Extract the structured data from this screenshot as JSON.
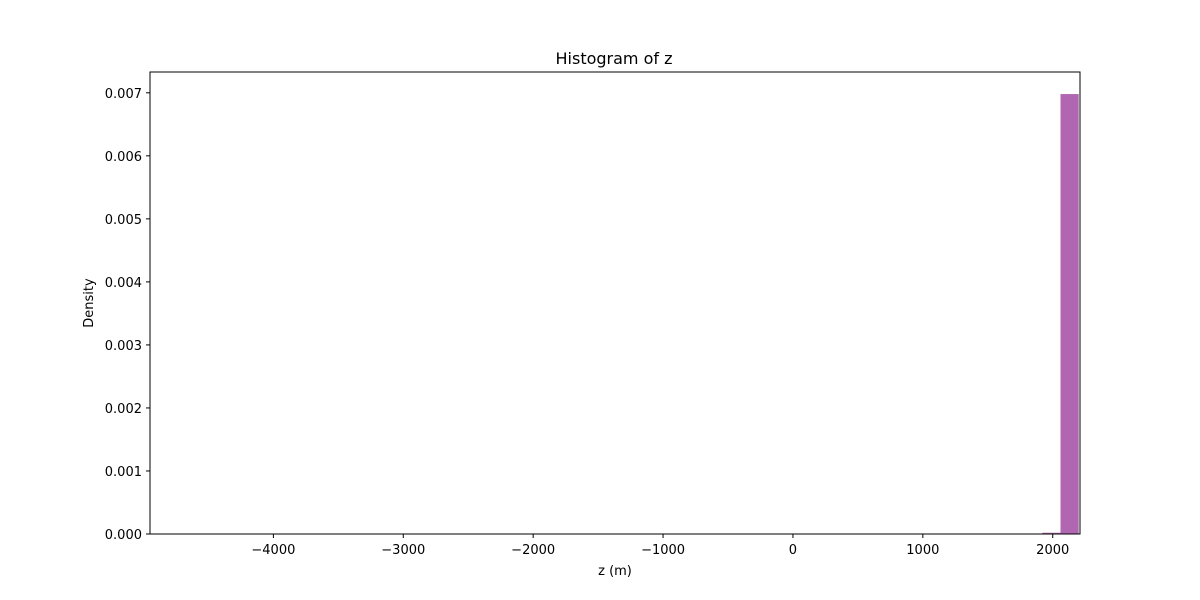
{
  "chart_data": {
    "type": "bar",
    "title": "Histogram of z",
    "xlabel": "z (m)",
    "ylabel": "Density",
    "xlim": [
      -4950,
      2210
    ],
    "ylim": [
      0,
      0.00733
    ],
    "xticks": [
      -4000,
      -3000,
      -2000,
      -1000,
      0,
      1000,
      2000
    ],
    "xtick_labels": [
      "−4000",
      "−3000",
      "−2000",
      "−1000",
      "0",
      "1000",
      "2000"
    ],
    "yticks": [
      0,
      0.001,
      0.002,
      0.003,
      0.004,
      0.005,
      0.006,
      0.007
    ],
    "ytick_labels": [
      "0.000",
      "0.001",
      "0.002",
      "0.003",
      "0.004",
      "0.005",
      "0.006",
      "0.007"
    ],
    "grid": false,
    "bar_color": "#b066b0",
    "bins": [
      {
        "x0": 1920,
        "x1": 2060,
        "value": 2e-05
      },
      {
        "x0": 2060,
        "x1": 2200,
        "value": 0.00698
      }
    ]
  }
}
